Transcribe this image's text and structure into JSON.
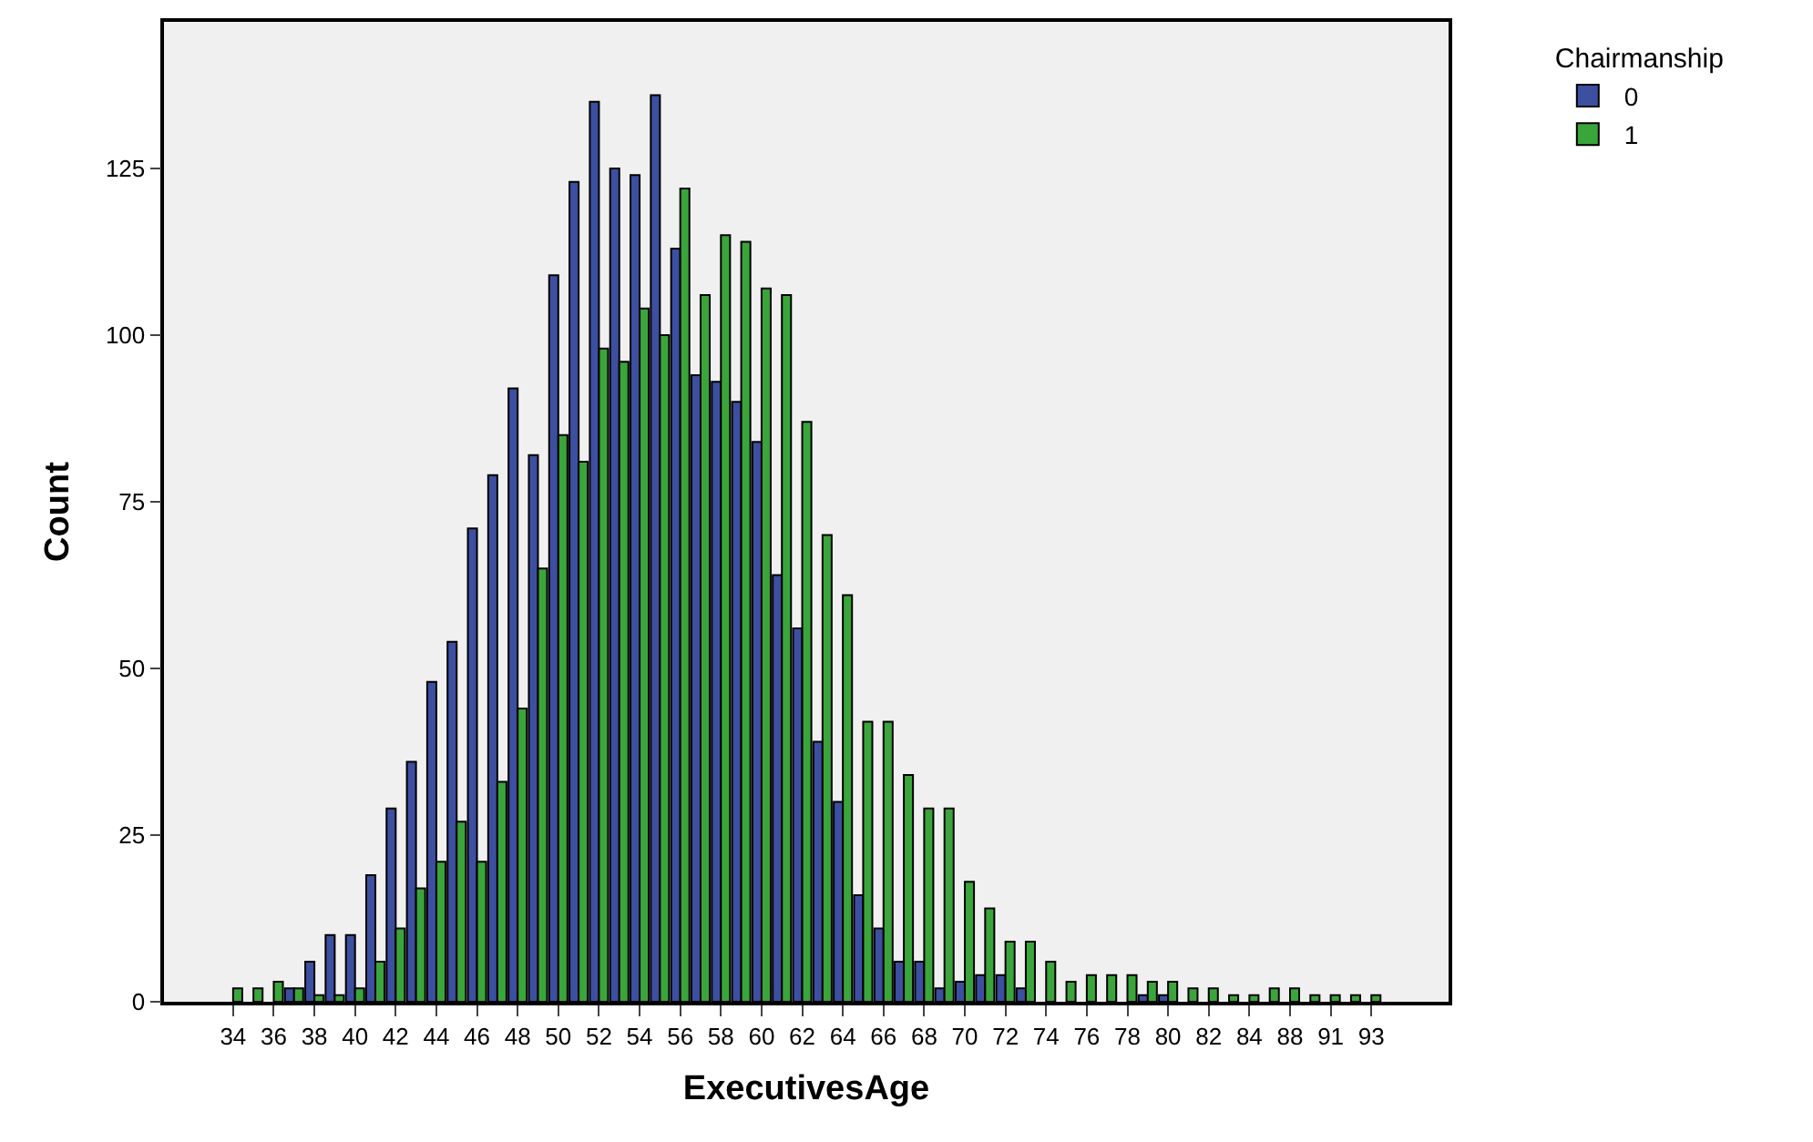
{
  "chart_data": {
    "type": "bar",
    "xlabel": "ExecutivesAge",
    "ylabel": "Count",
    "legend_title": "Chairmanship",
    "categories": [
      "34",
      null,
      "36",
      null,
      "38",
      null,
      "40",
      null,
      "42",
      null,
      "44",
      null,
      "46",
      null,
      "48",
      null,
      "50",
      null,
      "52",
      null,
      "54",
      null,
      "56",
      null,
      "58",
      null,
      "60",
      null,
      "62",
      null,
      "64",
      null,
      "66",
      null,
      "68",
      null,
      "70",
      null,
      "72",
      null,
      "74",
      null,
      "76",
      null,
      "78",
      null,
      "80",
      null,
      "82",
      null,
      "84",
      null,
      "88",
      null,
      "91",
      null,
      "93"
    ],
    "series": [
      {
        "name": "0",
        "color": "#3c4fa0",
        "values": [
          null,
          null,
          null,
          2,
          6,
          10,
          10,
          19,
          29,
          36,
          48,
          54,
          71,
          79,
          92,
          82,
          109,
          123,
          135,
          125,
          124,
          136,
          113,
          94,
          93,
          90,
          84,
          64,
          56,
          39,
          30,
          16,
          11,
          6,
          6,
          2,
          3,
          4,
          4,
          2,
          null,
          null,
          null,
          null,
          null,
          1,
          1,
          null,
          null,
          null,
          null,
          null,
          null,
          null,
          null,
          null,
          null
        ]
      },
      {
        "name": "1",
        "color": "#3aa53a",
        "values": [
          2,
          2,
          3,
          2,
          1,
          1,
          2,
          6,
          11,
          17,
          21,
          27,
          21,
          33,
          44,
          65,
          85,
          81,
          98,
          96,
          104,
          100,
          122,
          106,
          115,
          114,
          107,
          106,
          87,
          70,
          61,
          42,
          42,
          34,
          29,
          29,
          18,
          14,
          9,
          9,
          6,
          3,
          4,
          4,
          4,
          3,
          3,
          2,
          2,
          1,
          1,
          2,
          2,
          1,
          1,
          1,
          1
        ]
      }
    ],
    "ylim": [
      0,
      147
    ],
    "yticks": [
      0,
      25,
      50,
      75,
      100,
      125
    ],
    "grid": false,
    "legend": "top right"
  }
}
